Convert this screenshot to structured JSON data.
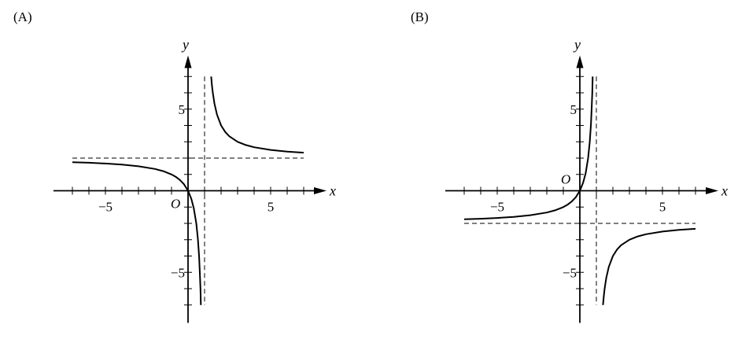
{
  "chart_data": [
    {
      "type": "line",
      "panel_label": "(A)",
      "xlabel": "x",
      "ylabel": "y",
      "origin_label": "O",
      "xlim": [
        -8,
        8
      ],
      "ylim": [
        -8,
        8
      ],
      "x_ticks": [
        -7,
        -6,
        -5,
        -4,
        -3,
        -2,
        -1,
        1,
        2,
        3,
        4,
        5,
        6,
        7
      ],
      "y_ticks": [
        -7,
        -6,
        -5,
        -4,
        -3,
        -2,
        -1,
        1,
        2,
        3,
        4,
        5,
        6,
        7
      ],
      "x_tick_labels": [
        {
          "value": -5,
          "text": "−5"
        },
        {
          "value": 5,
          "text": "5"
        }
      ],
      "y_tick_labels": [
        {
          "value": 5,
          "text": "5"
        },
        {
          "value": -5,
          "text": "−5"
        }
      ],
      "asymptotes": {
        "vertical_x": 1,
        "horizontal_y": 2
      },
      "grid": false,
      "branches": [
        {
          "x": [
            -7,
            -6,
            -5,
            -4,
            -3,
            -2,
            -1.5,
            -1,
            -0.75,
            -0.5,
            -0.25,
            0,
            0.2,
            0.35,
            0.5,
            0.6,
            0.67,
            0.72,
            0.75,
            0.778
          ],
          "y": [
            1.75,
            1.714,
            1.667,
            1.6,
            1.5,
            1.333,
            1.2,
            1,
            0.857,
            0.667,
            0.4,
            0,
            -0.5,
            -1.077,
            -2,
            -3,
            -4.06,
            -5.14,
            -6,
            -7
          ]
        },
        {
          "x": [
            1.4,
            1.45,
            1.5,
            1.6,
            1.75,
            2,
            2.25,
            2.5,
            3,
            3.5,
            4,
            5,
            6,
            7
          ],
          "y": [
            7,
            6.44,
            6,
            5.333,
            4.667,
            4,
            3.6,
            3.333,
            3,
            2.8,
            2.667,
            2.5,
            2.4,
            2.333
          ]
        }
      ]
    },
    {
      "type": "line",
      "panel_label": "(B)",
      "xlabel": "x",
      "ylabel": "y",
      "origin_label": "O",
      "xlim": [
        -8,
        8
      ],
      "ylim": [
        -8,
        8
      ],
      "x_ticks": [
        -7,
        -6,
        -5,
        -4,
        -3,
        -2,
        -1,
        1,
        2,
        3,
        4,
        5,
        6,
        7
      ],
      "y_ticks": [
        -7,
        -6,
        -5,
        -4,
        -3,
        -2,
        -1,
        1,
        2,
        3,
        4,
        5,
        6,
        7
      ],
      "x_tick_labels": [
        {
          "value": -5,
          "text": "−5"
        },
        {
          "value": 5,
          "text": "5"
        }
      ],
      "y_tick_labels": [
        {
          "value": 5,
          "text": "5"
        },
        {
          "value": -5,
          "text": "−5"
        }
      ],
      "asymptotes": {
        "vertical_x": 1,
        "horizontal_y": -2
      },
      "grid": false,
      "branches": [
        {
          "x": [
            -7,
            -6,
            -5,
            -4,
            -3,
            -2,
            -1.5,
            -1,
            -0.75,
            -0.5,
            -0.25,
            0,
            0.2,
            0.35,
            0.5,
            0.6,
            0.67,
            0.72,
            0.75,
            0.778
          ],
          "y": [
            -1.75,
            -1.714,
            -1.667,
            -1.6,
            -1.5,
            -1.333,
            -1.2,
            -1,
            -0.857,
            -0.667,
            -0.4,
            0,
            0.5,
            1.077,
            2,
            3,
            4.06,
            5.14,
            6,
            7
          ]
        },
        {
          "x": [
            1.4,
            1.45,
            1.5,
            1.6,
            1.75,
            2,
            2.25,
            2.5,
            3,
            3.5,
            4,
            5,
            6,
            7
          ],
          "y": [
            -7,
            -6.44,
            -6,
            -5.333,
            -4.667,
            -4,
            -3.6,
            -3.333,
            -3,
            -2.8,
            -2.667,
            -2.5,
            -2.4,
            -2.333
          ]
        }
      ]
    }
  ]
}
